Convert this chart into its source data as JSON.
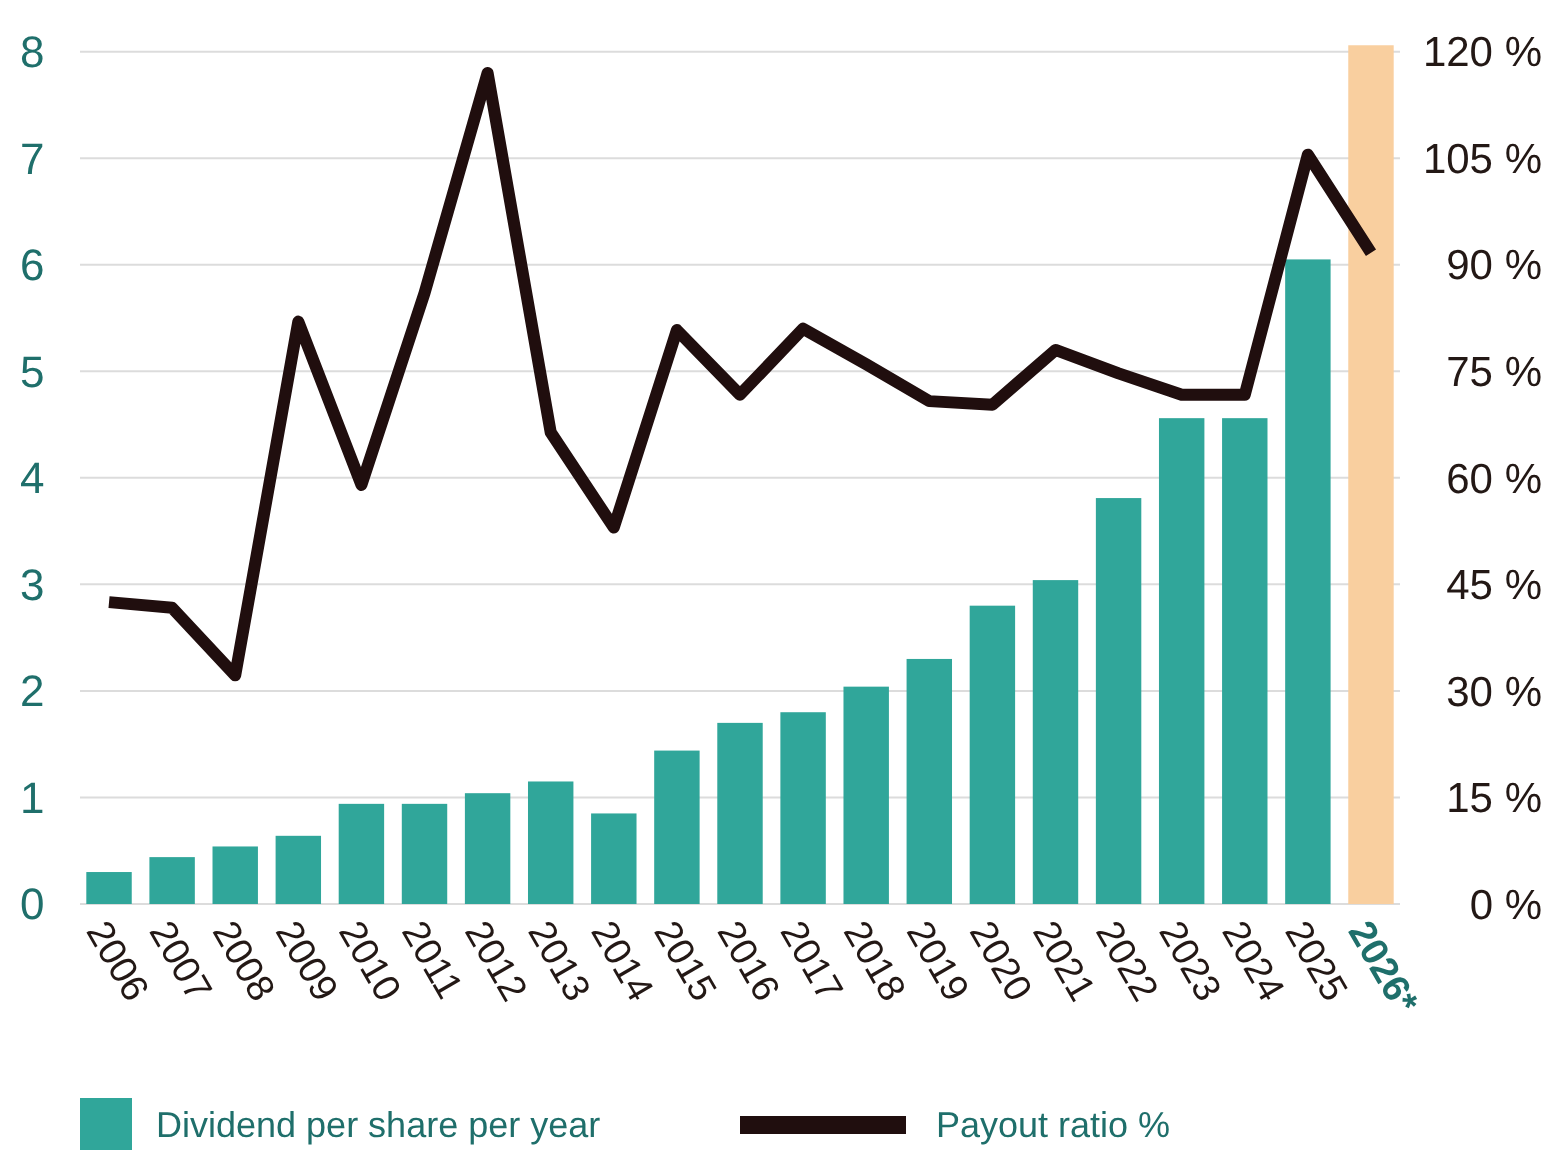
{
  "chart_data": {
    "type": "bar",
    "categories": [
      "2006",
      "2007",
      "2008",
      "2009",
      "2010",
      "2011",
      "2012",
      "2013",
      "2014",
      "2015",
      "2016",
      "2017",
      "2018",
      "2019",
      "2020",
      "2021",
      "2022",
      "2023",
      "2024",
      "2025",
      "2026*"
    ],
    "series": [
      {
        "name": "Dividend per share per year",
        "color": "#30a69a",
        "colors": [
          "#30a69a",
          "#30a69a",
          "#30a69a",
          "#30a69a",
          "#30a69a",
          "#30a69a",
          "#30a69a",
          "#30a69a",
          "#30a69a",
          "#30a69a",
          "#30a69a",
          "#30a69a",
          "#30a69a",
          "#30a69a",
          "#30a69a",
          "#30a69a",
          "#30a69a",
          "#30a69a",
          "#30a69a",
          "#30a69a",
          "#f9cf9f"
        ],
        "values": [
          0.3,
          0.44,
          0.54,
          0.64,
          0.94,
          0.94,
          1.04,
          1.15,
          0.85,
          1.44,
          1.7,
          1.8,
          2.04,
          2.3,
          2.8,
          3.04,
          3.81,
          4.56,
          4.56,
          6.05,
          8.06
        ]
      },
      {
        "name": "Payout ratio %",
        "type": "line",
        "axis": "y2",
        "color": "#200e0e",
        "values": [
          42.5,
          41.7,
          32.2,
          82,
          59,
          86,
          117,
          66.4,
          53,
          80.8,
          71.7,
          81,
          76,
          70.8,
          70.3,
          78,
          74.7,
          71.7,
          71.7,
          105.5,
          91.7
        ]
      }
    ],
    "ylim": [
      0,
      8.1
    ],
    "yticks": [
      0,
      1,
      2,
      3,
      4,
      5,
      6,
      7,
      8
    ],
    "y2lim": [
      0,
      121.5
    ],
    "y2ticks": [
      {
        "value": 0,
        "label": "0 %"
      },
      {
        "value": 15,
        "label": "15 %"
      },
      {
        "value": 30,
        "label": "30 %"
      },
      {
        "value": 45,
        "label": "45 %"
      },
      {
        "value": 60,
        "label": "60 %"
      },
      {
        "value": 75,
        "label": "75 %"
      },
      {
        "value": 90,
        "label": "90 %"
      },
      {
        "value": 105,
        "label": "105 %"
      },
      {
        "value": 120,
        "label": "120 %"
      }
    ],
    "grid": "y",
    "legend": "bottom",
    "marker": "none",
    "line_style": "solid"
  }
}
